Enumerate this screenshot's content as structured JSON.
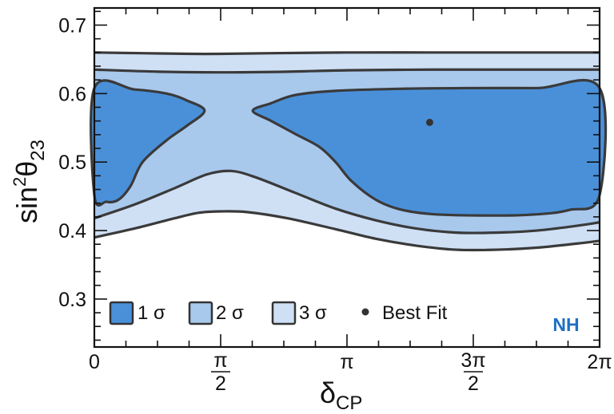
{
  "chart_data": {
    "type": "contour",
    "xlabel": {
      "main": "δ",
      "sub": "CP"
    },
    "ylabel": {
      "main": "sin",
      "sup": "2",
      "theta": "θ",
      "sub": "23"
    },
    "xlim": [
      0,
      6.2832
    ],
    "ylim": [
      0.23,
      0.725
    ],
    "x_ticks": [
      {
        "value": 0,
        "label": "0"
      },
      {
        "value": 1.5708,
        "num": "π",
        "den": "2"
      },
      {
        "value": 3.1416,
        "label": "π"
      },
      {
        "value": 4.7124,
        "num": "3π",
        "den": "2"
      },
      {
        "value": 6.2832,
        "label": "2π"
      }
    ],
    "y_ticks": [
      {
        "value": 0.3,
        "label": "0.3"
      },
      {
        "value": 0.4,
        "label": "0.4"
      },
      {
        "value": 0.5,
        "label": "0.5"
      },
      {
        "value": 0.6,
        "label": "0.6"
      },
      {
        "value": 0.7,
        "label": "0.7"
      }
    ],
    "regions": [
      {
        "name": "3 σ",
        "color": "#cfe0f5",
        "upper": [
          [
            0,
            0.66
          ],
          [
            0.6,
            0.659
          ],
          [
            1.2,
            0.658
          ],
          [
            1.57,
            0.658
          ],
          [
            2.2,
            0.659
          ],
          [
            3.14,
            0.66
          ],
          [
            4.2,
            0.66
          ],
          [
            5.2,
            0.66
          ],
          [
            6.2832,
            0.66
          ]
        ],
        "lower": [
          [
            0,
            0.39
          ],
          [
            0.5,
            0.403
          ],
          [
            1.0,
            0.418
          ],
          [
            1.3,
            0.426
          ],
          [
            1.57,
            0.428
          ],
          [
            1.9,
            0.427
          ],
          [
            2.4,
            0.418
          ],
          [
            3.0,
            0.402
          ],
          [
            3.5,
            0.388
          ],
          [
            4.0,
            0.378
          ],
          [
            4.5,
            0.372
          ],
          [
            5.0,
            0.372
          ],
          [
            5.5,
            0.375
          ],
          [
            6.0,
            0.381
          ],
          [
            6.2832,
            0.385
          ]
        ]
      },
      {
        "name": "2 σ",
        "color": "#a8c8ec",
        "upper": [
          [
            0,
            0.635
          ],
          [
            0.8,
            0.632
          ],
          [
            1.57,
            0.631
          ],
          [
            2.4,
            0.632
          ],
          [
            3.14,
            0.634
          ],
          [
            4.2,
            0.635
          ],
          [
            5.2,
            0.635
          ],
          [
            6.2832,
            0.635
          ]
        ],
        "lower": [
          [
            0,
            0.418
          ],
          [
            0.5,
            0.438
          ],
          [
            1.0,
            0.462
          ],
          [
            1.4,
            0.482
          ],
          [
            1.7,
            0.487
          ],
          [
            2.0,
            0.478
          ],
          [
            2.5,
            0.455
          ],
          [
            3.0,
            0.432
          ],
          [
            3.5,
            0.415
          ],
          [
            4.0,
            0.403
          ],
          [
            4.5,
            0.397
          ],
          [
            5.0,
            0.397
          ],
          [
            5.5,
            0.4
          ],
          [
            6.0,
            0.407
          ],
          [
            6.2832,
            0.412
          ]
        ]
      },
      {
        "name": "1 σ",
        "color": "#4a90d9",
        "blobs": [
          [
            [
              0,
              0.608
            ],
            [
              0.5,
              0.606
            ],
            [
              0.9,
              0.6
            ],
            [
              1.15,
              0.59
            ],
            [
              1.37,
              0.575
            ],
            [
              1.15,
              0.553
            ],
            [
              0.9,
              0.532
            ],
            [
              0.6,
              0.5
            ],
            [
              0.45,
              0.465
            ],
            [
              0.3,
              0.445
            ],
            [
              0.15,
              0.442
            ],
            [
              0,
              0.452
            ]
          ],
          [
            [
              6.2832,
              0.608
            ],
            [
              5.5,
              0.608
            ],
            [
              4.6,
              0.608
            ],
            [
              3.8,
              0.607
            ],
            [
              3.0,
              0.604
            ],
            [
              2.5,
              0.598
            ],
            [
              2.2,
              0.586
            ],
            [
              1.97,
              0.575
            ],
            [
              2.2,
              0.56
            ],
            [
              2.5,
              0.541
            ],
            [
              2.8,
              0.522
            ],
            [
              3.0,
              0.5
            ],
            [
              3.2,
              0.472
            ],
            [
              3.5,
              0.445
            ],
            [
              3.8,
              0.431
            ],
            [
              4.2,
              0.424
            ],
            [
              4.8,
              0.422
            ],
            [
              5.4,
              0.423
            ],
            [
              5.9,
              0.43
            ],
            [
              6.2832,
              0.452
            ]
          ]
        ]
      }
    ],
    "best_fit": {
      "x": 4.17,
      "y": 0.558,
      "label": "Best Fit"
    },
    "legend": {
      "position": "bottom-left",
      "entries": [
        {
          "label": "1 σ",
          "color": "#4a90d9"
        },
        {
          "label": "2 σ",
          "color": "#a8c8ec"
        },
        {
          "label": "3 σ",
          "color": "#cfe0f5"
        },
        {
          "label": "Best Fit",
          "marker": "dot"
        }
      ]
    },
    "annotation": {
      "text": "NH",
      "color": "#1f6fc5"
    }
  }
}
